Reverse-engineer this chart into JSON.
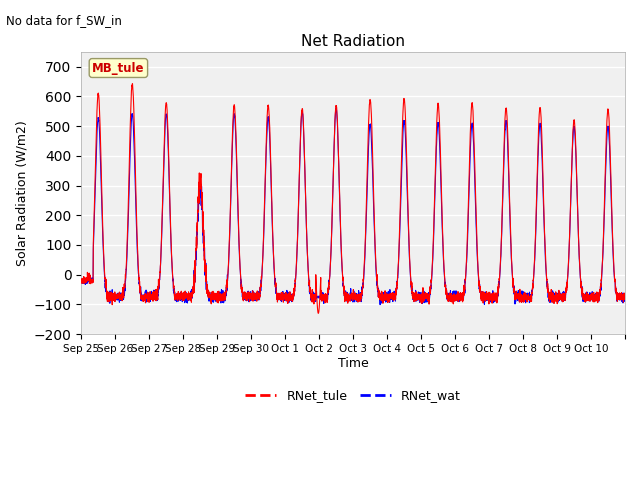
{
  "title": "Net Radiation",
  "subtitle": "No data for f_SW_in",
  "ylabel": "Solar Radiation (W/m2)",
  "xlabel": "Time",
  "ylim": [
    -200,
    750
  ],
  "yticks": [
    -200,
    -100,
    0,
    100,
    200,
    300,
    400,
    500,
    600,
    700
  ],
  "fig_facecolor": "#ffffff",
  "plot_bg_color": "#f0f0f0",
  "legend_label1": "RNet_tule",
  "legend_label2": "RNet_wat",
  "line_color1": "#ff0000",
  "line_color2": "#0000ff",
  "legend_box_facecolor": "#ffffcc",
  "legend_box_edgecolor": "#999966",
  "annotation_text": "MB_tule",
  "annotation_color": "#cc0000",
  "n_days": 16,
  "tick_labels": [
    "Sep 25",
    "Sep 26",
    "Sep 27",
    "Sep 28",
    "Sep 29",
    "Sep 30",
    "Oct 1",
    "Oct 2",
    "Oct 3",
    "Oct 4",
    "Oct 5",
    "Oct 6",
    "Oct 7",
    "Oct 8",
    "Oct 9",
    "Oct 10",
    ""
  ],
  "peak_values_tule": [
    610,
    642,
    578,
    320,
    570,
    570,
    558,
    568,
    590,
    590,
    575,
    575,
    560,
    562,
    520,
    555
  ],
  "peak_values_wat": [
    528,
    540,
    540,
    288,
    540,
    530,
    548,
    558,
    506,
    518,
    510,
    508,
    518,
    508,
    498,
    498
  ],
  "night_value": -75,
  "pts_per_day": 288
}
